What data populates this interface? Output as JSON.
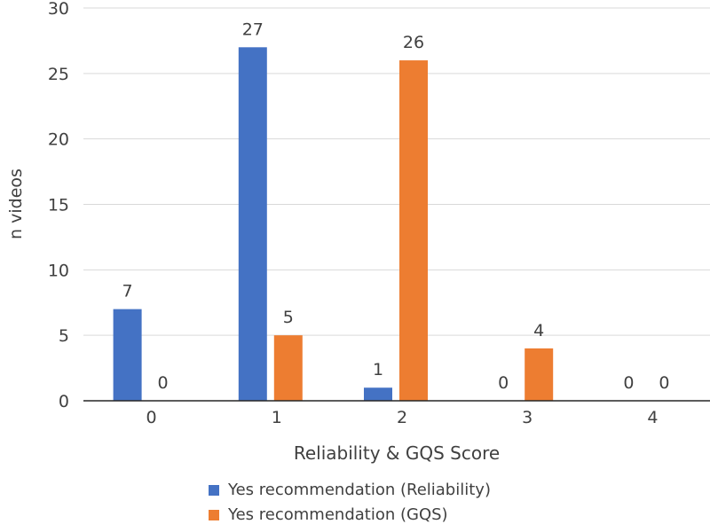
{
  "chart_data": {
    "type": "bar",
    "title": "",
    "xlabel": "Reliability & GQS Score",
    "ylabel": "n videos",
    "categories": [
      "0",
      "1",
      "2",
      "3",
      "4"
    ],
    "ylim": [
      0,
      30
    ],
    "yticks": [
      "0",
      "5",
      "10",
      "15",
      "20",
      "25",
      "30"
    ],
    "grid": true,
    "legend_position": "bottom",
    "series": [
      {
        "name": "Yes recommendation (Reliability)",
        "values": [
          7,
          27,
          1,
          0,
          0
        ],
        "color": "#4472C4"
      },
      {
        "name": "Yes recommendation (GQS)",
        "values": [
          0,
          5,
          26,
          4,
          0
        ],
        "color": "#ED7D31"
      }
    ]
  }
}
